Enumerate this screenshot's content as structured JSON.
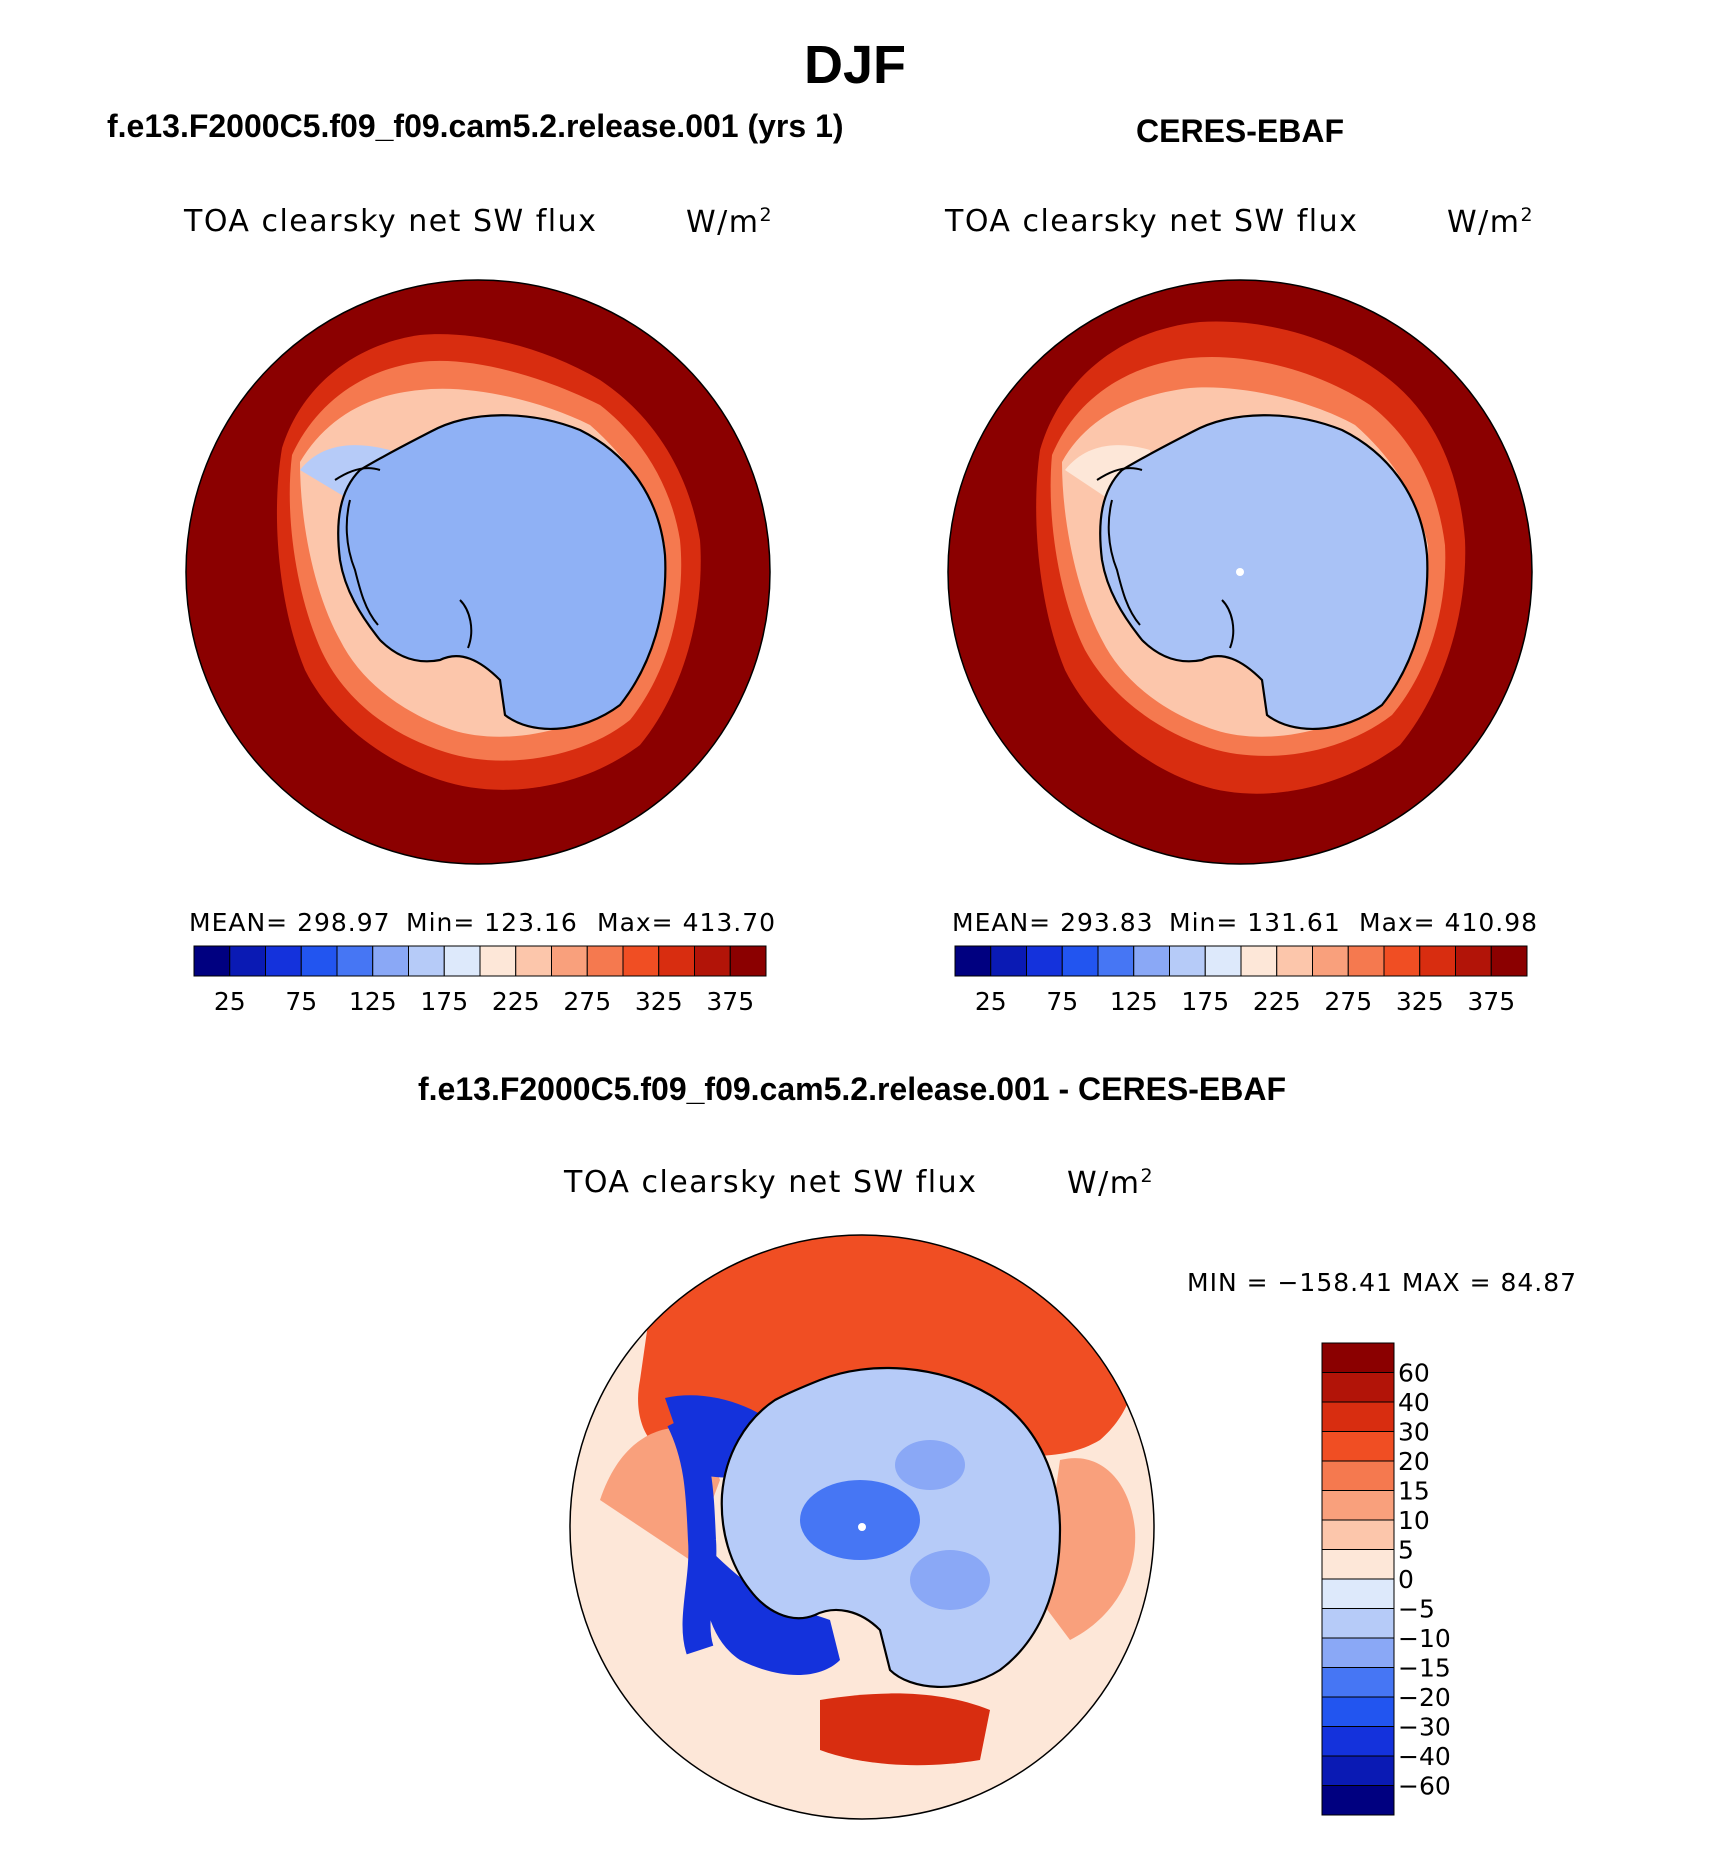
{
  "figure_title": "DJF",
  "panels": [
    {
      "header": "f.e13.F2000C5.f09_f09.cam5.2.release.001 (yrs 1)",
      "plot_title": "TOA clearsky net SW flux",
      "units_base": "W/m",
      "units_exp": "2",
      "stats": {
        "mean": "MEAN= 298.97",
        "min": "Min= 123.16",
        "max": "Max= 413.70"
      }
    },
    {
      "header": "CERES-EBAF",
      "plot_title": "TOA clearsky net SW flux",
      "units_base": "W/m",
      "units_exp": "2",
      "stats": {
        "mean": "MEAN= 293.83",
        "min": "Min= 131.61",
        "max": "Max= 410.98"
      }
    }
  ],
  "diff_panel": {
    "header": "f.e13.F2000C5.f09_f09.cam5.2.release.001 - CERES-EBAF",
    "plot_title": "TOA clearsky net SW flux",
    "units_base": "W/m",
    "units_exp": "2",
    "minmax": "MIN = −158.41  MAX =   84.87"
  },
  "colors": {
    "ocean_dark_red": "#8b0000",
    "antarctica_blue": "#8fb1f5",
    "coast": "#000000"
  },
  "chart_data": [
    {
      "type": "map",
      "projection": "south-polar-stereographic",
      "title": "TOA clearsky net SW flux",
      "colorbar": {
        "orientation": "horizontal",
        "tick_labels": [
          "25",
          "75",
          "125",
          "175",
          "225",
          "275",
          "325",
          "375"
        ],
        "levels": [
          25,
          50,
          75,
          100,
          125,
          150,
          175,
          200,
          225,
          250,
          275,
          300,
          325,
          350,
          375
        ],
        "colors": [
          "#000080",
          "#0a1ab4",
          "#1432dc",
          "#2255f0",
          "#4676f4",
          "#8aa8f6",
          "#b6cbf8",
          "#dde9fb",
          "#fde7d8",
          "#fcc6ab",
          "#f9a07c",
          "#f5794f",
          "#f04e23",
          "#d82d10",
          "#b21408",
          "#8b0000"
        ]
      }
    },
    {
      "type": "map",
      "projection": "south-polar-stereographic",
      "title": "TOA clearsky net SW flux",
      "colorbar": {
        "orientation": "horizontal",
        "tick_labels": [
          "25",
          "75",
          "125",
          "175",
          "225",
          "275",
          "325",
          "375"
        ],
        "levels": [
          25,
          50,
          75,
          100,
          125,
          150,
          175,
          200,
          225,
          250,
          275,
          300,
          325,
          350,
          375
        ],
        "colors": [
          "#000080",
          "#0a1ab4",
          "#1432dc",
          "#2255f0",
          "#4676f4",
          "#8aa8f6",
          "#b6cbf8",
          "#dde9fb",
          "#fde7d8",
          "#fcc6ab",
          "#f9a07c",
          "#f5794f",
          "#f04e23",
          "#d82d10",
          "#b21408",
          "#8b0000"
        ]
      }
    },
    {
      "type": "map",
      "projection": "south-polar-stereographic",
      "title": "TOA clearsky net SW flux",
      "colorbar": {
        "orientation": "vertical",
        "tick_labels": [
          "60",
          "40",
          "30",
          "20",
          "15",
          "10",
          "5",
          "0",
          "−5",
          "−10",
          "−15",
          "−20",
          "−30",
          "−40",
          "−60"
        ],
        "levels": [
          60,
          40,
          30,
          20,
          15,
          10,
          5,
          0,
          -5,
          -10,
          -15,
          -20,
          -30,
          -40,
          -60
        ],
        "colors": [
          "#8b0000",
          "#b21408",
          "#d82d10",
          "#f04e23",
          "#f5794f",
          "#f9a07c",
          "#fcc6ab",
          "#fde7d8",
          "#dde9fb",
          "#b6cbf8",
          "#8aa8f6",
          "#4676f4",
          "#2255f0",
          "#1432dc",
          "#0a1ab4",
          "#000080"
        ]
      }
    }
  ]
}
